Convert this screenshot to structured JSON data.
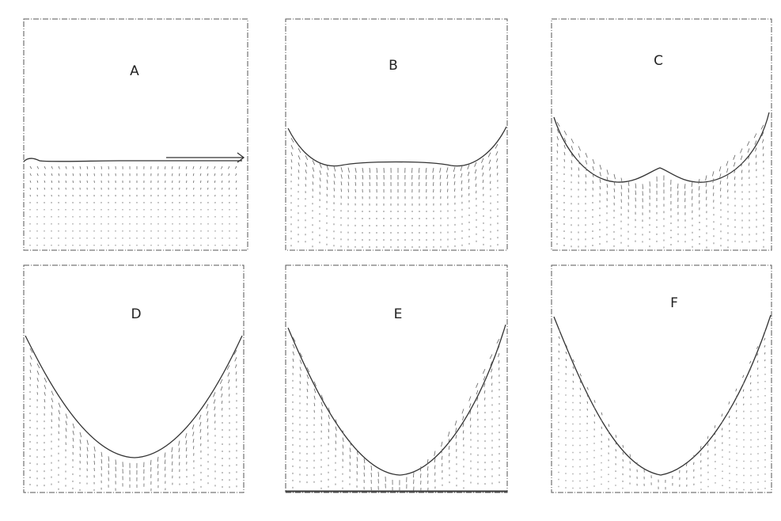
{
  "panels": [
    {
      "id": "A",
      "label": "A"
    },
    {
      "id": "B",
      "label": "B"
    },
    {
      "id": "C",
      "label": "C"
    },
    {
      "id": "D",
      "label": "D"
    },
    {
      "id": "E",
      "label": "E"
    },
    {
      "id": "F",
      "label": "F"
    }
  ]
}
